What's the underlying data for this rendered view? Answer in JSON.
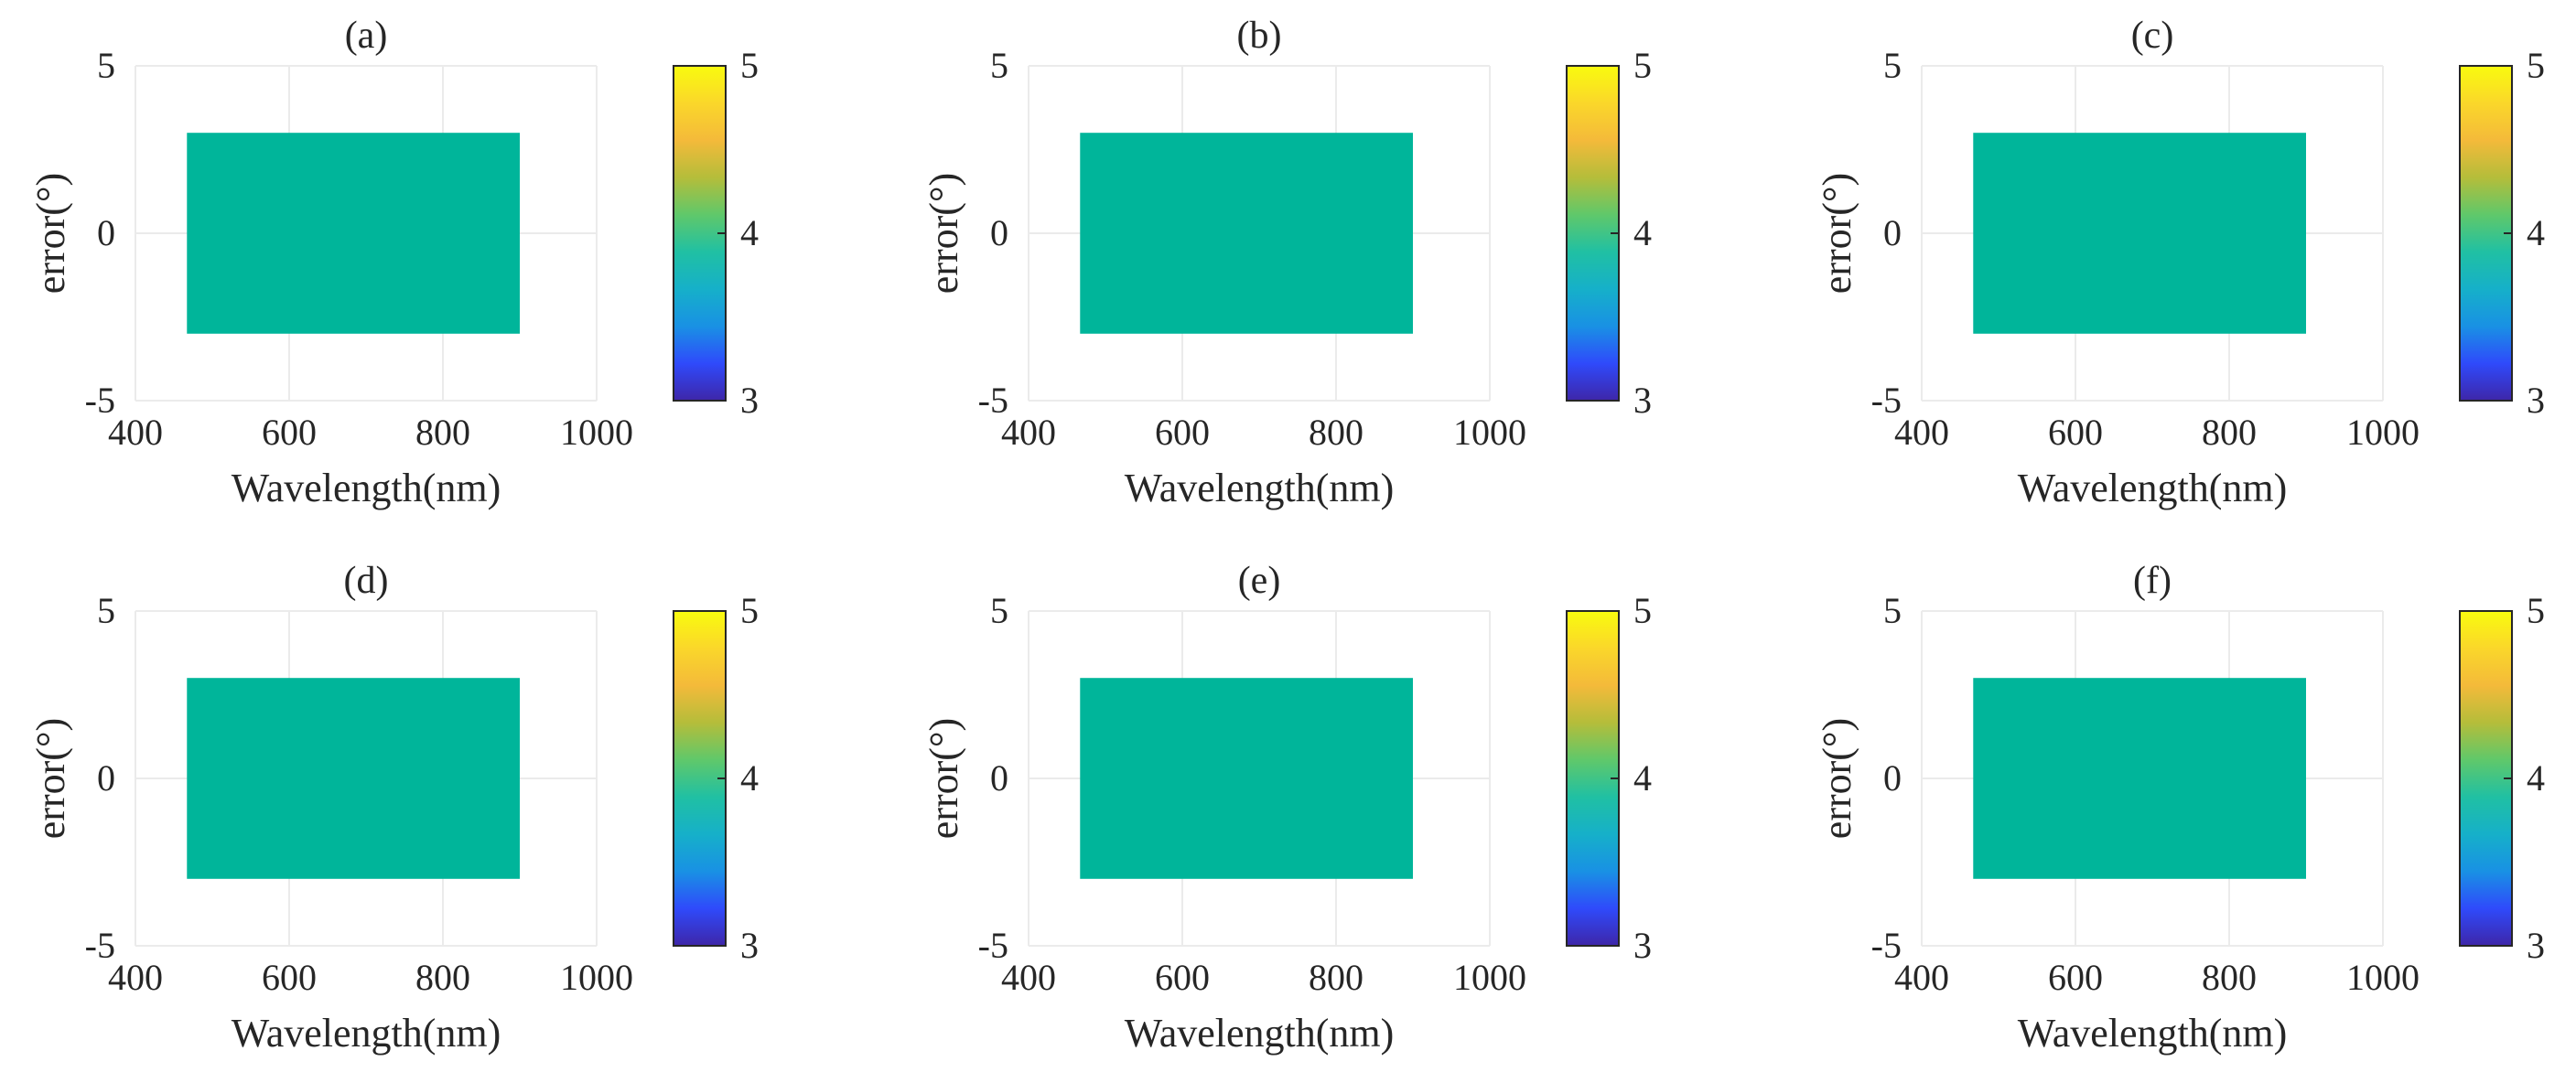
{
  "colors": {
    "fill": "#00b59a",
    "axis": "#262626",
    "grid": "#ebebeb",
    "colormap": [
      "#3e26a8",
      "#2f4afb",
      "#1991e4",
      "#16b0c9",
      "#20c0a3",
      "#60c86a",
      "#b5bd3a",
      "#f4ba3a",
      "#fad72a",
      "#f9fb0e"
    ]
  },
  "chart_data": [
    {
      "type": "heatmap",
      "title": "(a)",
      "xlabel": "Wavelength(nm)",
      "ylabel": "error(°)",
      "xlim": [
        400,
        1000
      ],
      "ylim": [
        -5,
        5
      ],
      "xticks": [
        "400",
        "600",
        "800",
        "1000"
      ],
      "yticks": [
        "5",
        "0",
        "-5"
      ],
      "grid": true,
      "region": {
        "x": [
          467,
          900
        ],
        "y": [
          -3,
          3
        ],
        "value": 4
      },
      "colorbar": {
        "clim": [
          3,
          5
        ],
        "ticks": [
          "5",
          "4",
          "3"
        ]
      }
    },
    {
      "type": "heatmap",
      "title": "(b)",
      "xlabel": "Wavelength(nm)",
      "ylabel": "error(°)",
      "xlim": [
        400,
        1000
      ],
      "ylim": [
        -5,
        5
      ],
      "xticks": [
        "400",
        "600",
        "800",
        "1000"
      ],
      "yticks": [
        "5",
        "0",
        "-5"
      ],
      "grid": true,
      "region": {
        "x": [
          467,
          900
        ],
        "y": [
          -3,
          3
        ],
        "value": 4
      },
      "colorbar": {
        "clim": [
          3,
          5
        ],
        "ticks": [
          "5",
          "4",
          "3"
        ]
      }
    },
    {
      "type": "heatmap",
      "title": "(c)",
      "xlabel": "Wavelength(nm)",
      "ylabel": "error(°)",
      "xlim": [
        400,
        1000
      ],
      "ylim": [
        -5,
        5
      ],
      "xticks": [
        "400",
        "600",
        "800",
        "1000"
      ],
      "yticks": [
        "5",
        "0",
        "-5"
      ],
      "grid": true,
      "region": {
        "x": [
          467,
          900
        ],
        "y": [
          -3,
          3
        ],
        "value": 4
      },
      "colorbar": {
        "clim": [
          3,
          5
        ],
        "ticks": [
          "5",
          "4",
          "3"
        ]
      }
    },
    {
      "type": "heatmap",
      "title": "(d)",
      "xlabel": "Wavelength(nm)",
      "ylabel": "error(°)",
      "xlim": [
        400,
        1000
      ],
      "ylim": [
        -5,
        5
      ],
      "xticks": [
        "400",
        "600",
        "800",
        "1000"
      ],
      "yticks": [
        "5",
        "0",
        "-5"
      ],
      "grid": true,
      "region": {
        "x": [
          467,
          900
        ],
        "y": [
          -3,
          3
        ],
        "value": 4
      },
      "colorbar": {
        "clim": [
          3,
          5
        ],
        "ticks": [
          "5",
          "4",
          "3"
        ]
      }
    },
    {
      "type": "heatmap",
      "title": "(e)",
      "xlabel": "Wavelength(nm)",
      "ylabel": "error(°)",
      "xlim": [
        400,
        1000
      ],
      "ylim": [
        -5,
        5
      ],
      "xticks": [
        "400",
        "600",
        "800",
        "1000"
      ],
      "yticks": [
        "5",
        "0",
        "-5"
      ],
      "grid": true,
      "region": {
        "x": [
          467,
          900
        ],
        "y": [
          -3,
          3
        ],
        "value": 4
      },
      "colorbar": {
        "clim": [
          3,
          5
        ],
        "ticks": [
          "5",
          "4",
          "3"
        ]
      }
    },
    {
      "type": "heatmap",
      "title": "(f)",
      "xlabel": "Wavelength(nm)",
      "ylabel": "error(°)",
      "xlim": [
        400,
        1000
      ],
      "ylim": [
        -5,
        5
      ],
      "xticks": [
        "400",
        "600",
        "800",
        "1000"
      ],
      "yticks": [
        "5",
        "0",
        "-5"
      ],
      "grid": true,
      "region": {
        "x": [
          467,
          900
        ],
        "y": [
          -3,
          3
        ],
        "value": 4
      },
      "colorbar": {
        "clim": [
          3,
          5
        ],
        "ticks": [
          "5",
          "4",
          "3"
        ]
      }
    }
  ]
}
